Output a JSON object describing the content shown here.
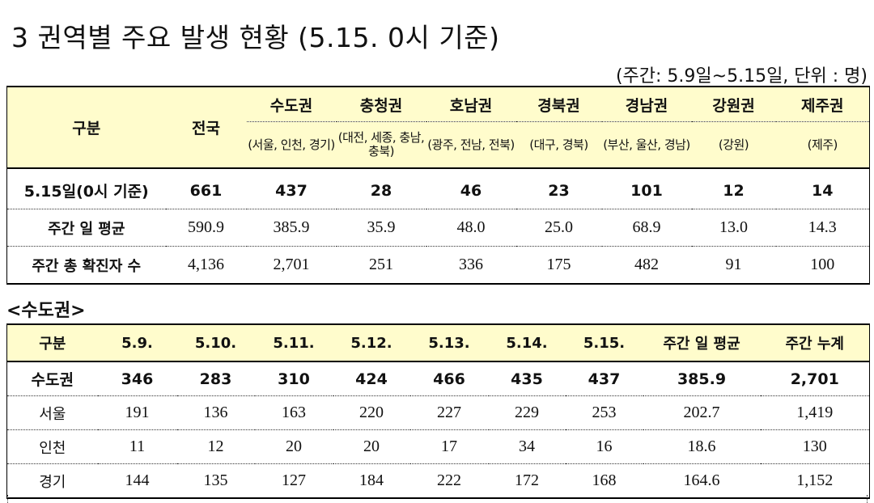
{
  "title": "3  권역별 주요 발생 현황 (5.15. 0시 기준)",
  "unit_note": "(주간: 5.9일~5.15일, 단위 : 명)",
  "summary": {
    "header_label": "구분",
    "nation_label": "전국",
    "regions": [
      {
        "name": "수도권",
        "sub": "(서울, 인천, 경기)"
      },
      {
        "name": "충청권",
        "sub": "(대전, 세종, 충남, 충북)"
      },
      {
        "name": "호남권",
        "sub": "(광주, 전남, 전북)"
      },
      {
        "name": "경북권",
        "sub": "(대구, 경북)"
      },
      {
        "name": "경남권",
        "sub": "(부산, 울산, 경남)"
      },
      {
        "name": "강원권",
        "sub": "(강원)"
      },
      {
        "name": "제주권",
        "sub": "(제주)"
      }
    ],
    "rows": [
      {
        "label": "5.15일(0시 기준)",
        "values": [
          "661",
          "437",
          "28",
          "46",
          "23",
          "101",
          "12",
          "14"
        ]
      },
      {
        "label": "주간 일 평균",
        "values": [
          "590.9",
          "385.9",
          "35.9",
          "48.0",
          "25.0",
          "68.9",
          "13.0",
          "14.3"
        ]
      },
      {
        "label": "주간 총 확진자 수",
        "values": [
          "4,136",
          "2,701",
          "251",
          "336",
          "175",
          "482",
          "91",
          "100"
        ]
      }
    ]
  },
  "section_title": "<수도권>",
  "capital": {
    "headers": [
      "구분",
      "5.9.",
      "5.10.",
      "5.11.",
      "5.12.",
      "5.13.",
      "5.14.",
      "5.15.",
      "주간 일 평균",
      "주간 누계"
    ],
    "rows": [
      {
        "label": "수도권",
        "values": [
          "346",
          "283",
          "310",
          "424",
          "466",
          "435",
          "437",
          "385.9",
          "2,701"
        ]
      },
      {
        "label": "서울",
        "values": [
          "191",
          "136",
          "163",
          "220",
          "227",
          "229",
          "253",
          "202.7",
          "1,419"
        ]
      },
      {
        "label": "인천",
        "values": [
          "11",
          "12",
          "20",
          "20",
          "17",
          "34",
          "16",
          "18.6",
          "130"
        ]
      },
      {
        "label": "경기",
        "values": [
          "144",
          "135",
          "127",
          "184",
          "222",
          "172",
          "168",
          "164.6",
          "1,152"
        ]
      }
    ]
  }
}
